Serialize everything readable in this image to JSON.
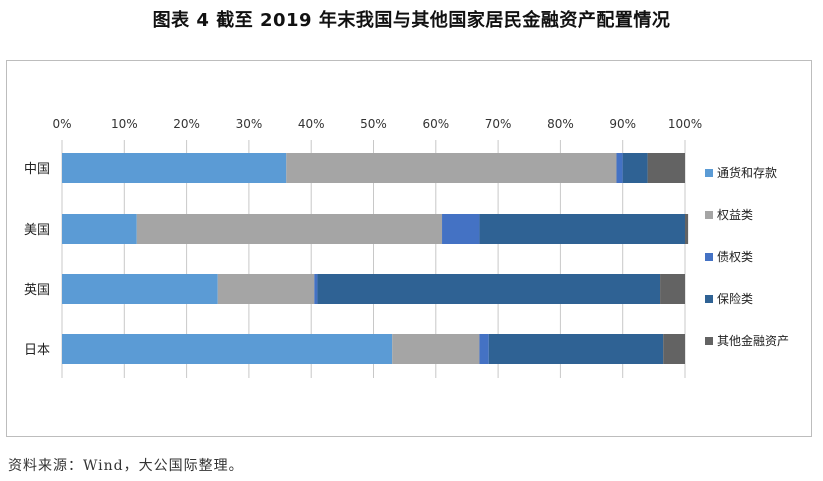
{
  "title": "图表 4  截至 2019 年末我国与其他国家居民金融资产配置情况",
  "source": "资料来源：Wind，大公国际整理。",
  "chart_data": {
    "type": "bar",
    "orientation": "horizontal",
    "stacked": "percent",
    "categories": [
      "中国",
      "美国",
      "英国",
      "日本"
    ],
    "series": [
      {
        "name": "通货和存款",
        "color": "#5b9bd5",
        "values": [
          36,
          12,
          25,
          53
        ]
      },
      {
        "name": "权益类",
        "color": "#a5a5a5",
        "values": [
          53,
          49,
          15.5,
          14
        ]
      },
      {
        "name": "债权类",
        "color": "#4472c4",
        "values": [
          1,
          6,
          0.5,
          1.5
        ]
      },
      {
        "name": "保险类",
        "color": "#2f6294",
        "values": [
          4,
          33,
          55,
          28
        ]
      },
      {
        "name": "其他金融资产",
        "color": "#636363",
        "values": [
          6,
          0.5,
          4,
          3.5
        ]
      }
    ],
    "xlim": [
      0,
      100
    ],
    "tick_labels": [
      "0%",
      "10%",
      "20%",
      "30%",
      "40%",
      "50%",
      "60%",
      "70%",
      "80%",
      "90%",
      "100%"
    ],
    "x_axis_position": "top",
    "grid": true,
    "legend_position": "right"
  }
}
